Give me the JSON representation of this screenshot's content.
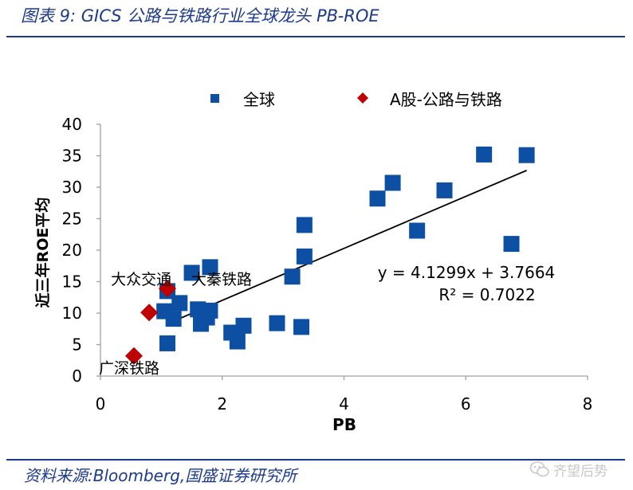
{
  "header": {
    "title": "图表 9:  GICS 公路与铁路行业全球龙头 PB-ROE"
  },
  "footer": {
    "source": "资料来源:Bloomberg,国盛证券研究所",
    "watermark": "齐望后势"
  },
  "colors": {
    "global": "#0d4fa3",
    "a_share": "#c00000",
    "frame": "#1c3a8c",
    "trend": "#000000",
    "axis": "#a0a0a0"
  },
  "icons": {
    "watermark_icon": "chat-bubble-icon"
  },
  "chart_data": {
    "type": "scatter",
    "title": "",
    "xlabel": "PB",
    "ylabel": "近三年ROE平均",
    "xlim": [
      0,
      8
    ],
    "ylim": [
      0,
      40
    ],
    "x_ticks": [
      0,
      2,
      4,
      6,
      8
    ],
    "y_ticks": [
      0,
      5,
      10,
      15,
      20,
      25,
      30,
      35,
      40
    ],
    "grid": false,
    "legend_position": "top",
    "series": [
      {
        "name": "全球",
        "marker": "square",
        "points": [
          [
            1.1,
            13.5
          ],
          [
            1.05,
            10.3
          ],
          [
            1.3,
            11.6
          ],
          [
            1.2,
            9.1
          ],
          [
            1.1,
            5.2
          ],
          [
            1.5,
            16.4
          ],
          [
            1.8,
            17.3
          ],
          [
            1.6,
            10.6
          ],
          [
            1.7,
            10.2
          ],
          [
            1.8,
            10.4
          ],
          [
            1.65,
            8.3
          ],
          [
            1.75,
            9.3
          ],
          [
            2.15,
            6.9
          ],
          [
            2.35,
            8.0
          ],
          [
            2.25,
            5.5
          ],
          [
            2.9,
            8.4
          ],
          [
            3.3,
            7.8
          ],
          [
            3.15,
            15.8
          ],
          [
            3.35,
            19.0
          ],
          [
            3.35,
            24.0
          ],
          [
            4.55,
            28.2
          ],
          [
            4.8,
            30.7
          ],
          [
            5.2,
            23.1
          ],
          [
            5.65,
            29.5
          ],
          [
            6.3,
            35.2
          ],
          [
            6.75,
            21.0
          ],
          [
            7.0,
            35.1
          ]
        ]
      },
      {
        "name": "A股-公路与铁路",
        "marker": "diamond",
        "points": [
          [
            0.55,
            3.2
          ],
          [
            0.8,
            10.1
          ],
          [
            1.1,
            13.9
          ]
        ]
      }
    ],
    "annotations": [
      {
        "text": "广深铁路",
        "x": 0.55,
        "y": 3.2
      },
      {
        "text": "大众交通",
        "x": 0.8,
        "y": 10.1
      },
      {
        "text": "大秦铁路",
        "x": 1.1,
        "y": 13.9
      }
    ],
    "trendline": {
      "equation": "y = 4.1299x + 3.7664",
      "r2": "R² = 0.7022",
      "slope": 4.1299,
      "intercept": 3.7664,
      "x_range": [
        1.1,
        7.0
      ]
    }
  }
}
